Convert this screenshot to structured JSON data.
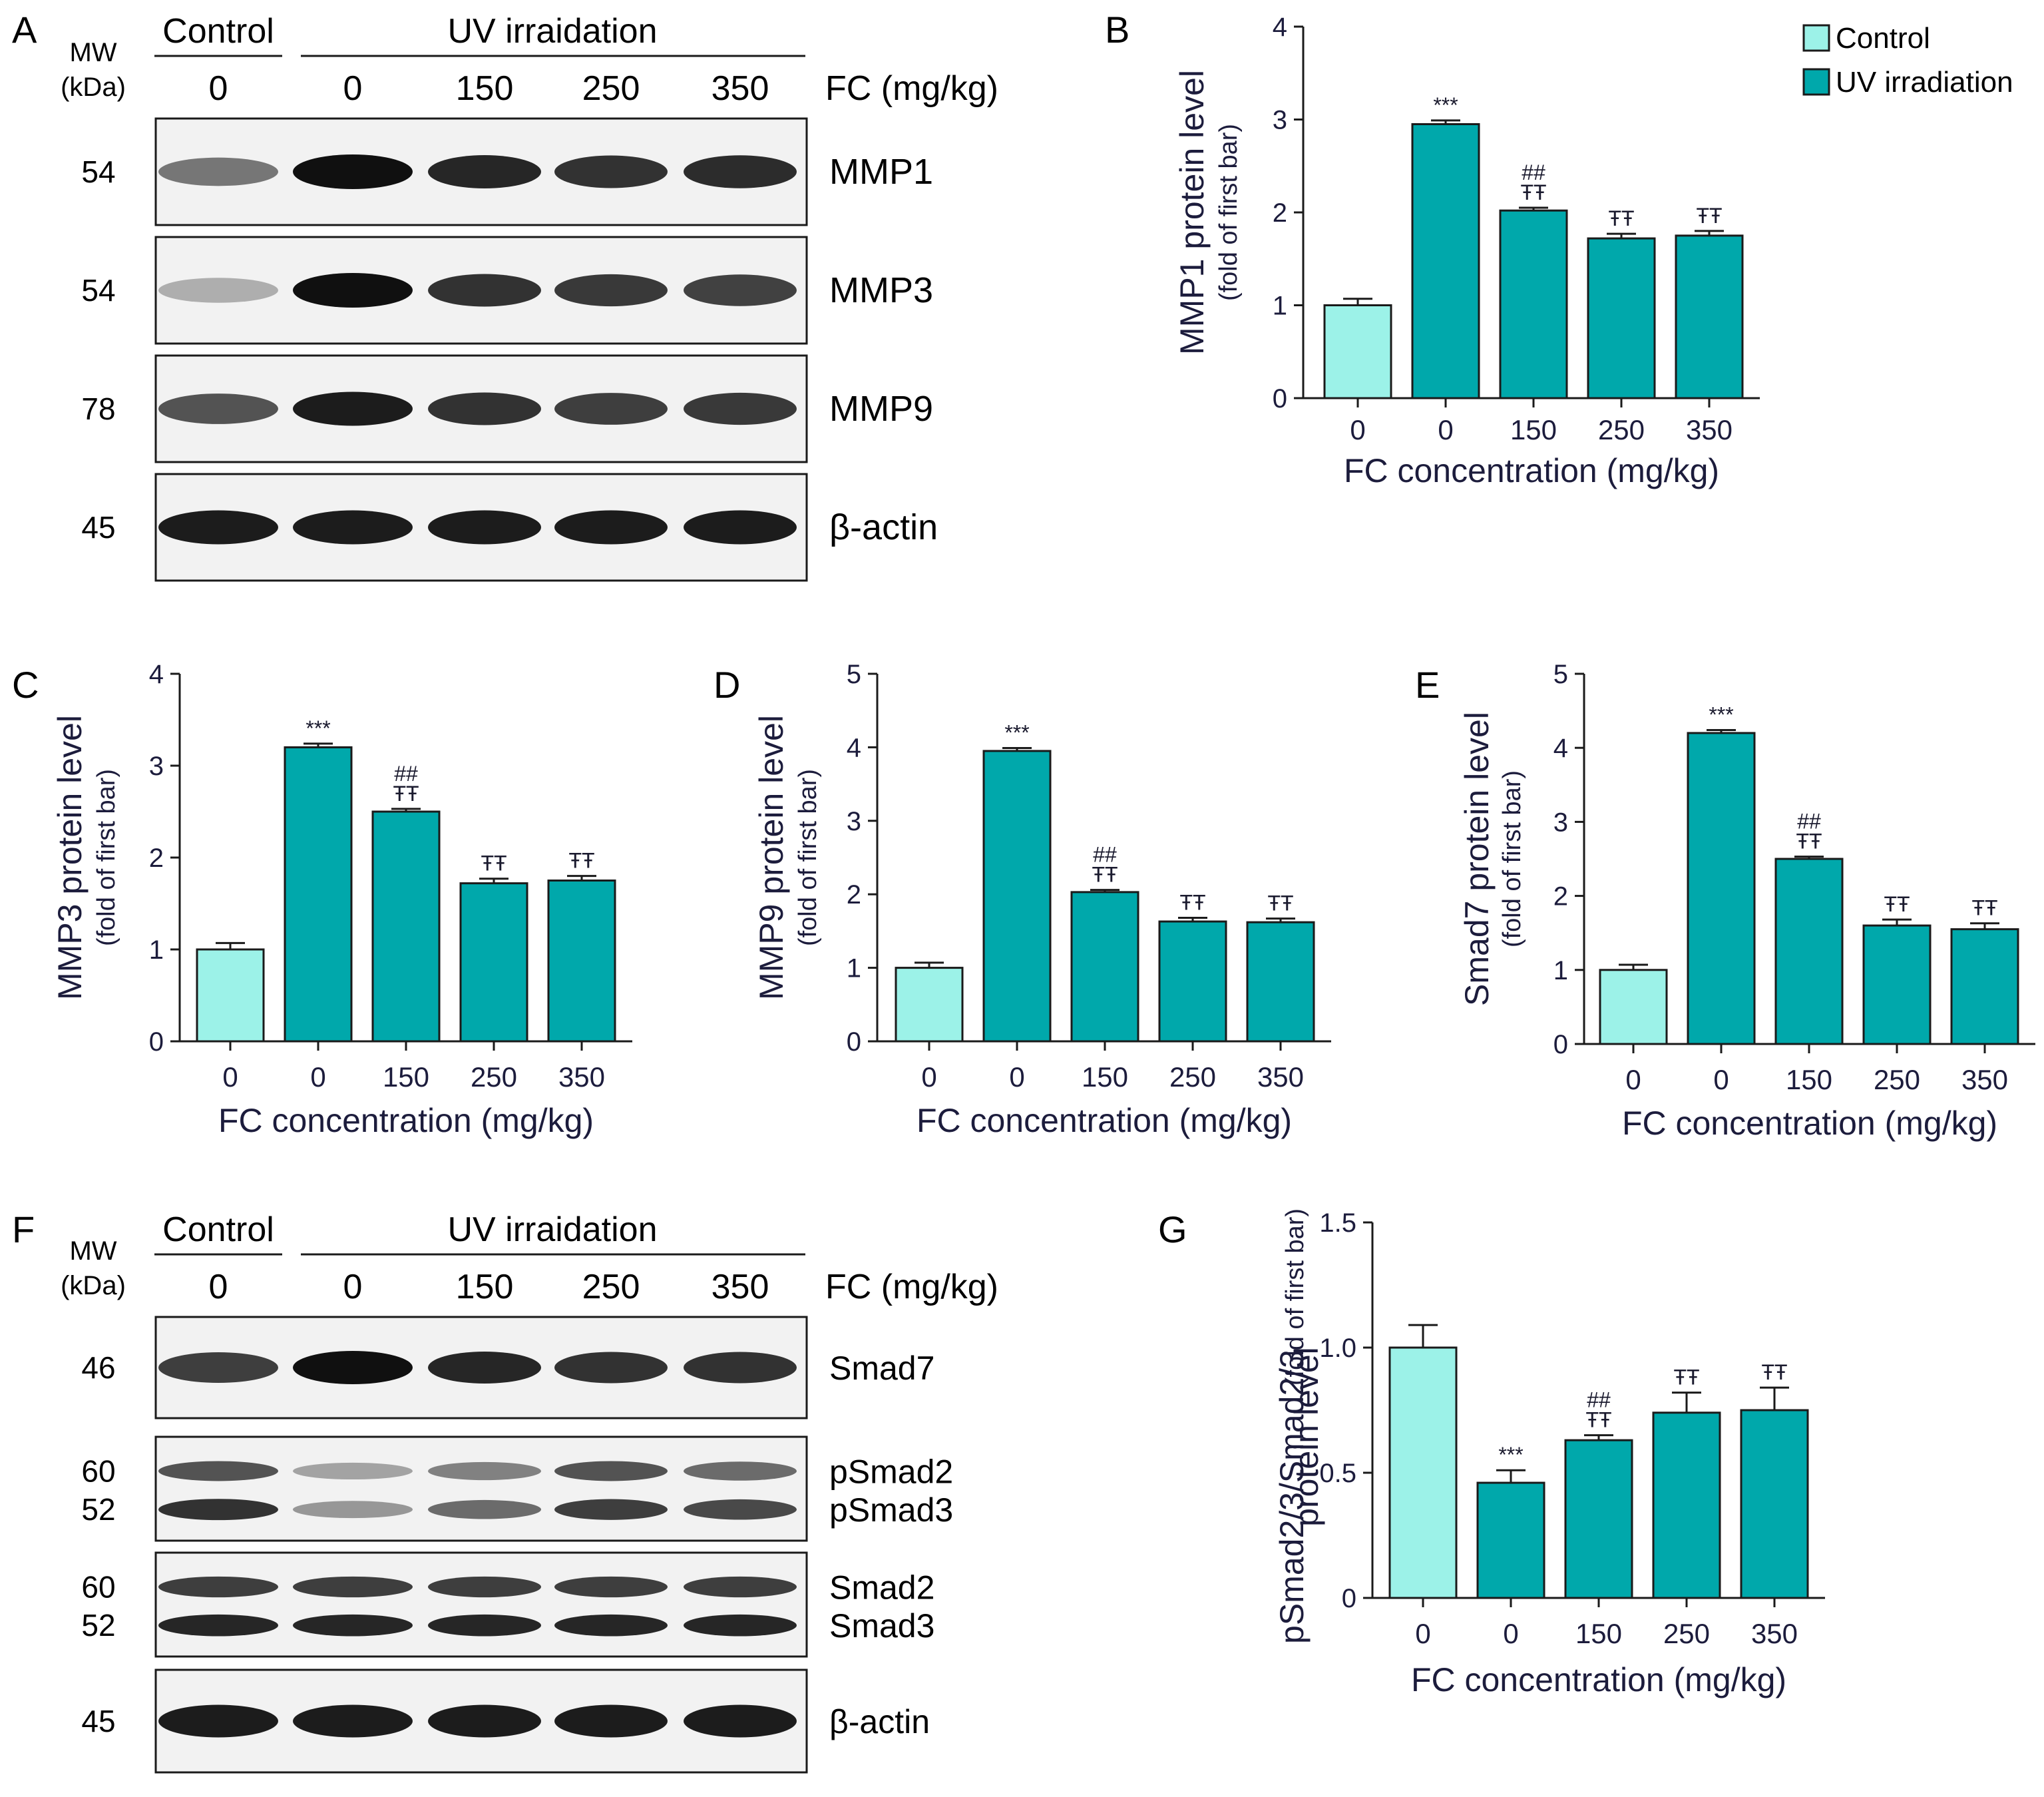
{
  "colors": {
    "control_fill": "#9cf2e8",
    "uv_fill": "#00a8ab",
    "bar_stroke": "#1a1a1a",
    "axis": "#1a1a1a",
    "label_text": "#1c1c3c",
    "blot_band": "#101010",
    "blot_bg": "#f2f2f2"
  },
  "panel_letters": {
    "A": "A",
    "B": "B",
    "C": "C",
    "D": "D",
    "E": "E",
    "F": "F",
    "G": "G"
  },
  "legend": {
    "control": "Control",
    "uv": "UV irradiation"
  },
  "blot_A": {
    "mw_title_1": "MW",
    "mw_title_2": "(kDa)",
    "control_header": "Control",
    "uv_header": "UV irraidation",
    "fc_label": "FC (mg/kg)",
    "doses": [
      "0",
      "0",
      "150",
      "250",
      "350"
    ],
    "rows": [
      {
        "mw": "54",
        "label": "MMP1",
        "intensity": [
          0.55,
          1.0,
          0.9,
          0.85,
          0.88
        ]
      },
      {
        "mw": "54",
        "label": "MMP3",
        "intensity": [
          0.3,
          1.0,
          0.85,
          0.82,
          0.78
        ]
      },
      {
        "mw": "78",
        "label": "MMP9",
        "intensity": [
          0.7,
          0.95,
          0.85,
          0.8,
          0.82
        ]
      },
      {
        "mw": "45",
        "label": "β-actin",
        "intensity": [
          0.95,
          0.95,
          0.95,
          0.95,
          0.95
        ]
      }
    ]
  },
  "blot_F": {
    "mw_title_1": "MW",
    "mw_title_2": "(kDa)",
    "control_header": "Control",
    "uv_header": "UV irraidation",
    "fc_label": "FC (mg/kg)",
    "doses": [
      "0",
      "0",
      "150",
      "250",
      "350"
    ],
    "rows": [
      {
        "mw": [
          "46"
        ],
        "label": [
          "Smad7"
        ],
        "intensity": [
          [
            0.8,
            1.0,
            0.9,
            0.85,
            0.85
          ]
        ]
      },
      {
        "mw": [
          "60",
          "52"
        ],
        "label": [
          "pSmad2",
          "pSmad3"
        ],
        "intensity": [
          [
            0.7,
            0.35,
            0.5,
            0.7,
            0.6
          ],
          [
            0.85,
            0.4,
            0.6,
            0.8,
            0.75
          ]
        ]
      },
      {
        "mw": [
          "60",
          "52"
        ],
        "label": [
          "Smad2",
          "Smad3"
        ],
        "intensity": [
          [
            0.8,
            0.8,
            0.8,
            0.8,
            0.8
          ],
          [
            0.9,
            0.9,
            0.9,
            0.9,
            0.9
          ]
        ]
      },
      {
        "mw": [
          "45"
        ],
        "label": [
          "β-actin"
        ],
        "intensity": [
          [
            0.95,
            0.95,
            0.95,
            0.95,
            0.95
          ]
        ]
      }
    ]
  },
  "chart_data": [
    {
      "panel": "B",
      "type": "bar",
      "categories": [
        "0",
        "0",
        "150",
        "250",
        "350"
      ],
      "values": [
        1.0,
        2.95,
        2.02,
        1.72,
        1.75
      ],
      "errors": [
        0.07,
        0.04,
        0.03,
        0.05,
        0.05
      ],
      "annotations": [
        [
          ""
        ],
        [
          "***"
        ],
        [
          "##",
          "ŦŦ"
        ],
        [
          "ŦŦ"
        ],
        [
          "ŦŦ"
        ]
      ],
      "ylabel": "MMP1 protein level",
      "ylabel2": "(fold of first bar)",
      "xlabel": "FC concentration (mg/kg)",
      "ylim": [
        0,
        4
      ],
      "yticks": [
        "0",
        "1",
        "2",
        "3",
        "4"
      ],
      "ytick_values": [
        0,
        1,
        2,
        3,
        4
      ]
    },
    {
      "panel": "C",
      "type": "bar",
      "categories": [
        "0",
        "0",
        "150",
        "250",
        "350"
      ],
      "values": [
        1.0,
        3.2,
        2.5,
        1.72,
        1.75
      ],
      "errors": [
        0.07,
        0.04,
        0.03,
        0.05,
        0.05
      ],
      "annotations": [
        [
          ""
        ],
        [
          "***"
        ],
        [
          "##",
          "ŦŦ"
        ],
        [
          "ŦŦ"
        ],
        [
          "ŦŦ"
        ]
      ],
      "ylabel": "MMP3 protein level",
      "ylabel2": "(fold of first bar)",
      "xlabel": "FC concentration (mg/kg)",
      "ylim": [
        0,
        4
      ],
      "yticks": [
        "0",
        "1",
        "2",
        "3",
        "4"
      ],
      "ytick_values": [
        0,
        1,
        2,
        3,
        4
      ]
    },
    {
      "panel": "D",
      "type": "bar",
      "categories": [
        "0",
        "0",
        "150",
        "250",
        "350"
      ],
      "values": [
        1.0,
        3.95,
        2.03,
        1.63,
        1.62
      ],
      "errors": [
        0.07,
        0.04,
        0.03,
        0.05,
        0.05
      ],
      "annotations": [
        [
          ""
        ],
        [
          "***"
        ],
        [
          "##",
          "ŦŦ"
        ],
        [
          "ŦŦ"
        ],
        [
          "ŦŦ"
        ]
      ],
      "ylabel": "MMP9 protein level",
      "ylabel2": "(fold of first bar)",
      "xlabel": "FC concentration (mg/kg)",
      "ylim": [
        0,
        5
      ],
      "yticks": [
        "0",
        "1",
        "2",
        "3",
        "4",
        "5"
      ],
      "ytick_values": [
        0,
        1,
        2,
        3,
        4,
        5
      ]
    },
    {
      "panel": "E",
      "type": "bar",
      "categories": [
        "0",
        "0",
        "150",
        "250",
        "350"
      ],
      "values": [
        1.0,
        4.2,
        2.5,
        1.6,
        1.55
      ],
      "errors": [
        0.07,
        0.04,
        0.03,
        0.08,
        0.08
      ],
      "annotations": [
        [
          ""
        ],
        [
          "***"
        ],
        [
          "##",
          "ŦŦ"
        ],
        [
          "ŦŦ"
        ],
        [
          "ŦŦ"
        ]
      ],
      "ylabel": "Smad7 protein level",
      "ylabel2": "(fold of first bar)",
      "xlabel": "FC concentration (mg/kg)",
      "ylim": [
        0,
        5
      ],
      "yticks": [
        "0",
        "1",
        "2",
        "3",
        "4",
        "5"
      ],
      "ytick_values": [
        0,
        1,
        2,
        3,
        4,
        5
      ]
    },
    {
      "panel": "G",
      "type": "bar",
      "categories": [
        "0",
        "0",
        "150",
        "250",
        "350"
      ],
      "values": [
        1.0,
        0.46,
        0.63,
        0.74,
        0.75
      ],
      "errors": [
        0.09,
        0.05,
        0.02,
        0.08,
        0.09
      ],
      "annotations": [
        [
          ""
        ],
        [
          "***"
        ],
        [
          "##",
          "ŦŦ"
        ],
        [
          "ŦŦ"
        ],
        [
          "ŦŦ"
        ]
      ],
      "ylabel": "pSmad2/3/Smad2/3",
      "ylabel2": "(fold of first bar)",
      "ylabel3": "protein level",
      "xlabel": "FC concentration (mg/kg)",
      "ylim": [
        0,
        1.5
      ],
      "yticks": [
        "0",
        "0.5",
        "1.0",
        "1.5"
      ],
      "ytick_values": [
        0,
        0.5,
        1.0,
        1.5
      ]
    }
  ]
}
